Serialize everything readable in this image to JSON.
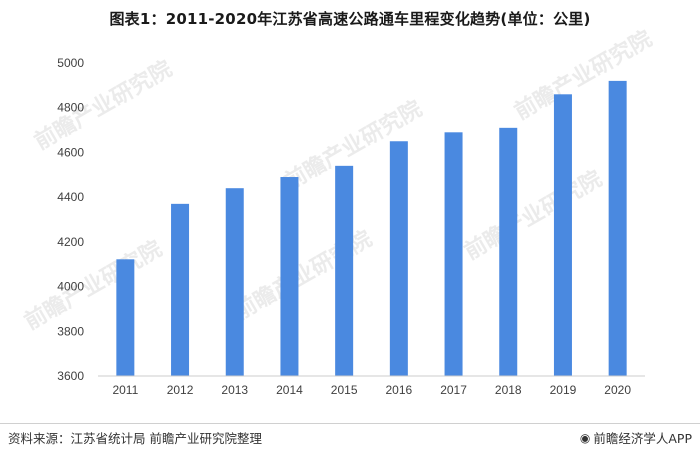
{
  "chart_data": {
    "type": "bar",
    "title": "图表1：2011-2020年江苏省高速公路通车里程变化趋势(单位：公里)",
    "categories": [
      "2011",
      "2012",
      "2013",
      "2014",
      "2015",
      "2016",
      "2017",
      "2018",
      "2019",
      "2020"
    ],
    "values": [
      4122,
      4370,
      4440,
      4490,
      4540,
      4650,
      4690,
      4710,
      4860,
      4920
    ],
    "ylim": [
      3600,
      5000
    ],
    "yticks": [
      3600,
      3800,
      4000,
      4200,
      4400,
      4600,
      4800,
      5000
    ],
    "grid": false,
    "legend": "none",
    "bar_color": "#4a89e0",
    "xlabel": "",
    "ylabel": ""
  },
  "footer": {
    "source": "资料来源：江苏省统计局 前瞻产业研究院整理",
    "brand": "前瞻经济学人APP",
    "brand_icon": "qianzhan-logo-icon"
  },
  "watermark": {
    "text": "前瞻产业研究院",
    "color": "#c8c8c8"
  }
}
